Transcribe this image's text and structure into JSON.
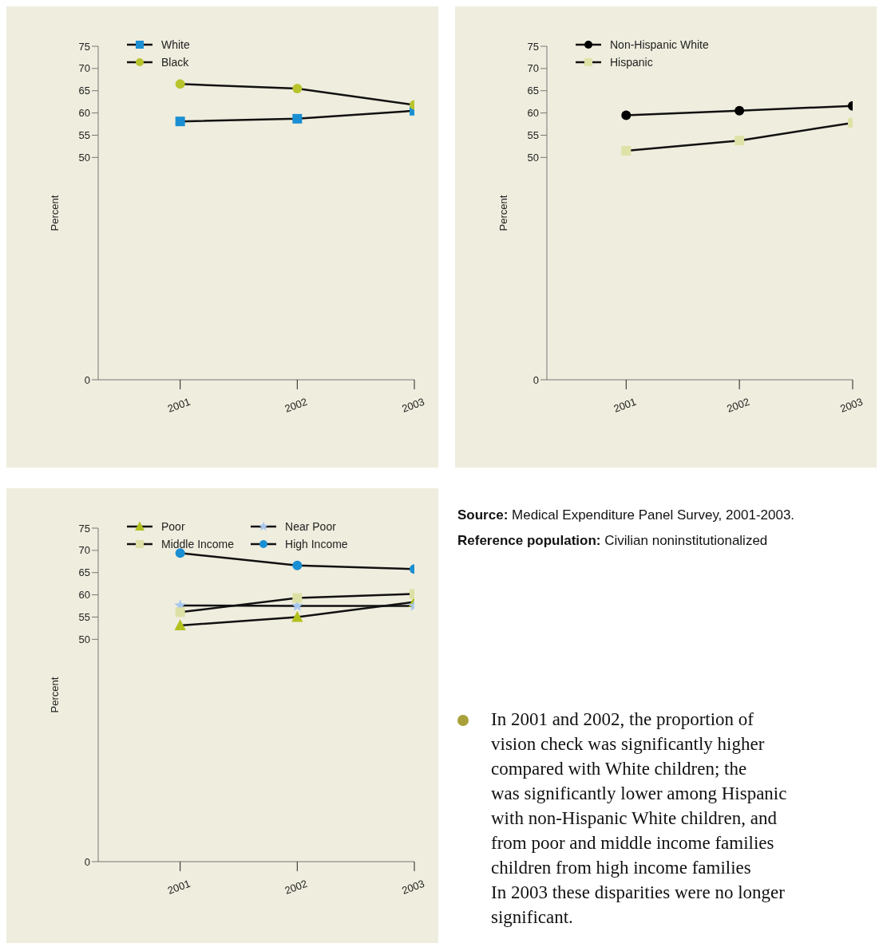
{
  "chart_data": [
    {
      "type": "line",
      "categories": [
        "2001",
        "2002",
        "2003"
      ],
      "ylabel": "Percent",
      "ylim": [
        0,
        75
      ],
      "yticks": [
        0,
        50,
        55,
        60,
        65,
        70,
        75
      ],
      "legend": "top left",
      "line_style": "solid",
      "series": [
        {
          "name": "White",
          "color": "#1a8fd3",
          "marker": "square",
          "values": [
            58.1,
            58.7,
            60.5
          ]
        },
        {
          "name": "Black",
          "color": "#b8c42c",
          "marker": "circle",
          "values": [
            66.5,
            65.5,
            61.8
          ]
        }
      ]
    },
    {
      "type": "line",
      "categories": [
        "2001",
        "2002",
        "2003"
      ],
      "ylabel": "Percent",
      "ylim": [
        0,
        75
      ],
      "yticks": [
        0,
        50,
        55,
        60,
        65,
        70,
        75
      ],
      "legend": "top left",
      "line_style": "solid",
      "series": [
        {
          "name": "Non-Hispanic White",
          "color": "#000000",
          "marker": "circle",
          "values": [
            59.5,
            60.5,
            61.6
          ]
        },
        {
          "name": "Hispanic",
          "color": "#dfe2a6",
          "marker": "square",
          "values": [
            51.5,
            53.8,
            57.8
          ]
        }
      ]
    },
    {
      "type": "line",
      "categories": [
        "2001",
        "2002",
        "2003"
      ],
      "ylabel": "Percent",
      "ylim": [
        0,
        75
      ],
      "yticks": [
        0,
        50,
        55,
        60,
        65,
        70,
        75
      ],
      "legend": "top left",
      "line_style": "solid",
      "series": [
        {
          "name": "Poor",
          "color": "#b3c11f",
          "marker": "triangle",
          "values": [
            53.1,
            55.0,
            58.4
          ]
        },
        {
          "name": "Near Poor",
          "color": "#a9c8ee",
          "marker": "star",
          "values": [
            57.6,
            57.5,
            57.5
          ]
        },
        {
          "name": "Middle Income",
          "color": "#dde0a4",
          "marker": "square",
          "values": [
            56.1,
            59.3,
            60.2
          ]
        },
        {
          "name": "High Income",
          "color": "#1a8fd3",
          "marker": "circle",
          "values": [
            69.4,
            66.6,
            65.8
          ]
        }
      ]
    },
    {
      "type": "other",
      "annotations": [
        "Source: Medical Expenditure Panel Survey, 2001-2003.",
        "Reference population: Civilian noninstitutionalized",
        "In 2001 and 2002, the proportion of",
        "vision check was significantly higher",
        "compared with White children; the",
        "was significantly lower among Hispanic",
        "with non-Hispanic White children, and",
        "from poor and middle income families",
        "children from high income families",
        "In 2003 these disparities were no longer",
        "significant."
      ]
    }
  ]
}
